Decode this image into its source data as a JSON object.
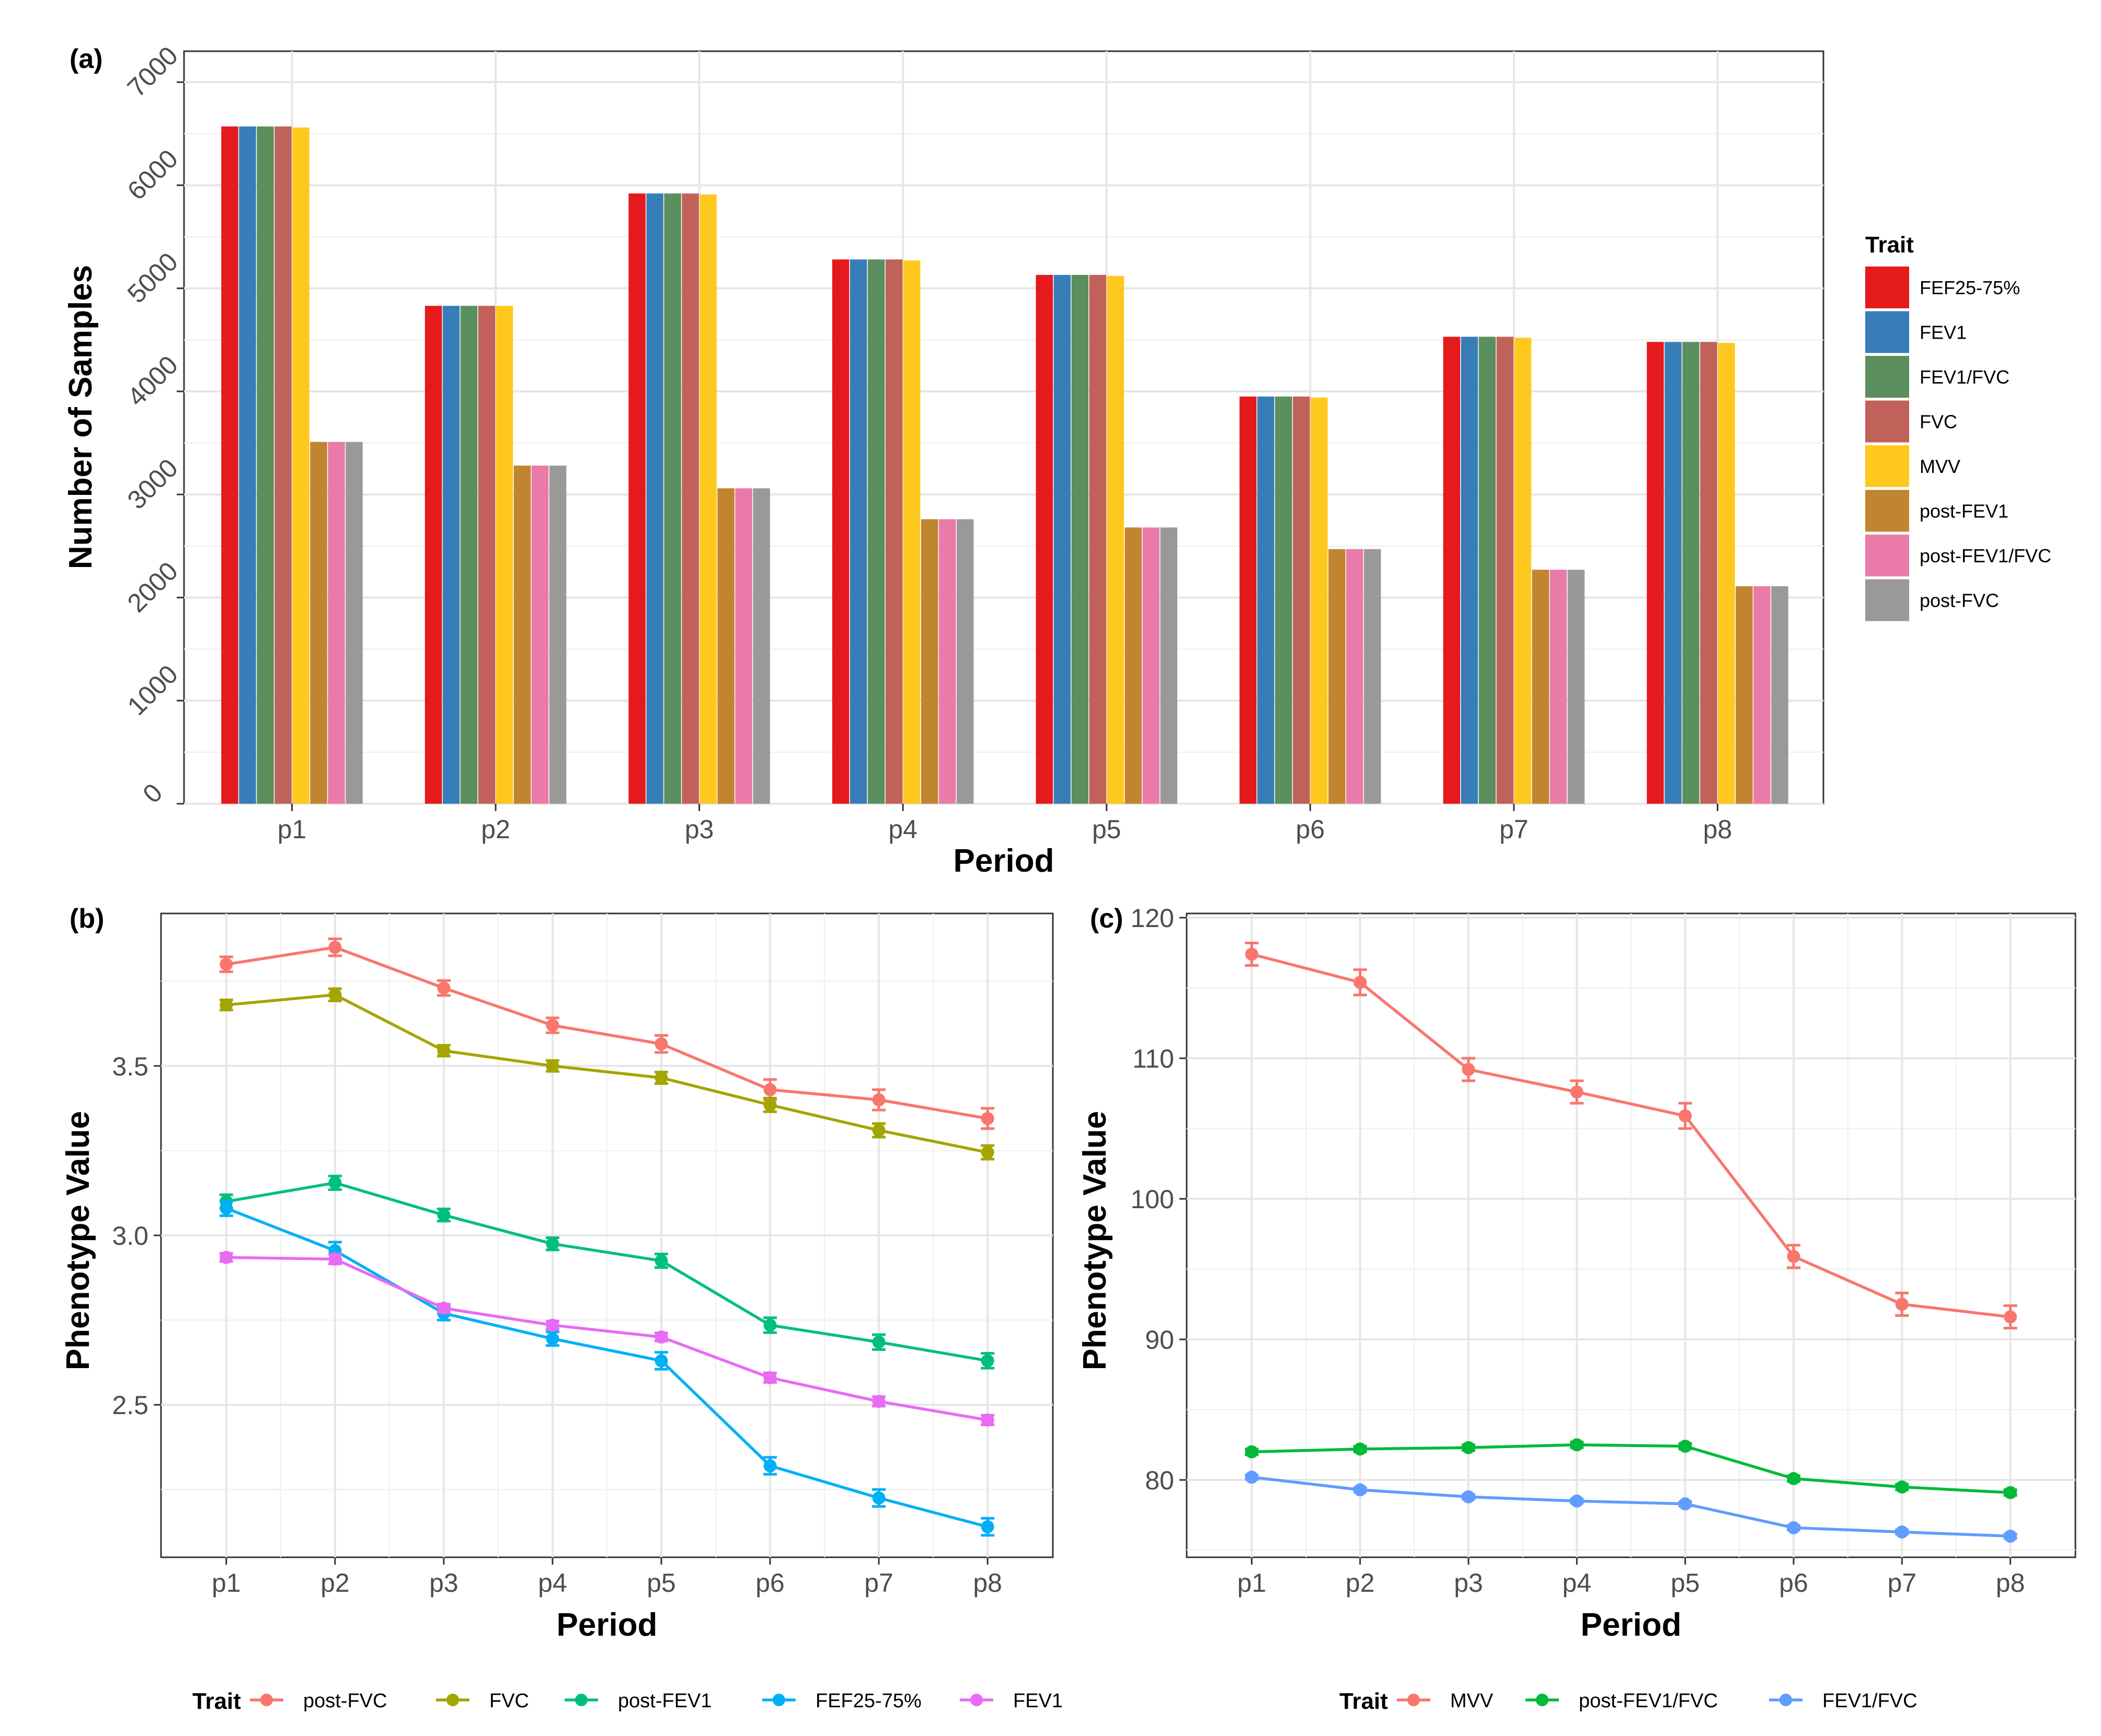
{
  "chart_data": [
    {
      "panel": "(a)",
      "type": "bar",
      "xlabel": "Period",
      "ylabel": "Number of Samples",
      "ylim": [
        0,
        7300
      ],
      "yticks": [
        0,
        1000,
        2000,
        3000,
        4000,
        5000,
        6000,
        7000
      ],
      "categories": [
        "p1",
        "p2",
        "p3",
        "p4",
        "p5",
        "p6",
        "p7",
        "p8"
      ],
      "legend_title": "Trait",
      "legend_position": "right",
      "series": [
        {
          "name": "FEF25-75%",
          "color": "#e41a1c",
          "values": [
            6570,
            4830,
            5920,
            5280,
            5130,
            3950,
            4530,
            4480
          ]
        },
        {
          "name": "FEV1",
          "color": "#377eb8",
          "values": [
            6570,
            4830,
            5920,
            5280,
            5130,
            3950,
            4530,
            4480
          ]
        },
        {
          "name": "FEV1/FVC",
          "color": "#5b8f5e",
          "values": [
            6570,
            4830,
            5920,
            5280,
            5130,
            3950,
            4530,
            4480
          ]
        },
        {
          "name": "FVC",
          "color": "#c0625a",
          "values": [
            6570,
            4830,
            5920,
            5280,
            5130,
            3950,
            4530,
            4480
          ]
        },
        {
          "name": "MVV",
          "color": "#ffc81e",
          "values": [
            6560,
            4830,
            5910,
            5270,
            5120,
            3940,
            4520,
            4470
          ]
        },
        {
          "name": "post-FEV1",
          "color": "#c18530",
          "values": [
            3510,
            3280,
            3060,
            2760,
            2680,
            2470,
            2270,
            2110
          ]
        },
        {
          "name": "post-FEV1/FVC",
          "color": "#ea7ba9",
          "values": [
            3510,
            3280,
            3060,
            2760,
            2680,
            2470,
            2270,
            2110
          ]
        },
        {
          "name": "post-FVC",
          "color": "#999999",
          "values": [
            3510,
            3280,
            3060,
            2760,
            2680,
            2470,
            2270,
            2110
          ]
        }
      ]
    },
    {
      "panel": "(b)",
      "type": "line",
      "xlabel": "Period",
      "ylabel": "Phenotype Value",
      "ylim": [
        2.05,
        3.95
      ],
      "yticks": [
        2.5,
        3.0,
        3.5
      ],
      "ytick_labels": [
        "2.5",
        "3.0",
        "3.5"
      ],
      "minor_y": [
        2.25,
        2.75,
        3.25,
        3.75
      ],
      "categories": [
        "p1",
        "p2",
        "p3",
        "p4",
        "p5",
        "p6",
        "p7",
        "p8"
      ],
      "legend_title": "Trait",
      "legend_position": "bottom",
      "series": [
        {
          "name": "post-FVC",
          "color": "#f8766d",
          "values": [
            3.8,
            3.85,
            3.73,
            3.62,
            3.565,
            3.43,
            3.4,
            3.345
          ],
          "err": [
            0.022,
            0.025,
            0.022,
            0.022,
            0.025,
            0.03,
            0.03,
            0.03
          ]
        },
        {
          "name": "FVC",
          "color": "#a3a500",
          "values": [
            3.68,
            3.71,
            3.545,
            3.5,
            3.465,
            3.385,
            3.31,
            3.245
          ],
          "err": [
            0.015,
            0.018,
            0.016,
            0.016,
            0.017,
            0.02,
            0.02,
            0.02
          ]
        },
        {
          "name": "post-FEV1",
          "color": "#00bf7d",
          "values": [
            3.1,
            3.155,
            3.06,
            2.975,
            2.925,
            2.735,
            2.685,
            2.63
          ],
          "err": [
            0.02,
            0.02,
            0.018,
            0.018,
            0.02,
            0.022,
            0.022,
            0.022
          ]
        },
        {
          "name": "FEF25-75%",
          "color": "#00b0f6",
          "values": [
            3.08,
            2.955,
            2.77,
            2.695,
            2.63,
            2.32,
            2.225,
            2.14
          ],
          "err": [
            0.022,
            0.025,
            0.02,
            0.02,
            0.025,
            0.025,
            0.025,
            0.025
          ]
        },
        {
          "name": "FEV1",
          "color": "#e76bf3",
          "values": [
            2.935,
            2.93,
            2.785,
            2.735,
            2.7,
            2.58,
            2.51,
            2.455
          ],
          "err": [
            0.012,
            0.014,
            0.012,
            0.012,
            0.012,
            0.014,
            0.014,
            0.014
          ]
        }
      ]
    },
    {
      "panel": "(c)",
      "type": "line",
      "xlabel": "Period",
      "ylabel": "Phenotype Value",
      "ylim": [
        74.5,
        120.3
      ],
      "yticks": [
        80,
        90,
        100,
        110,
        120
      ],
      "ytick_labels": [
        "80",
        "90",
        "100",
        "110",
        "120"
      ],
      "minor_y": [
        75,
        85,
        95,
        105,
        115
      ],
      "categories": [
        "p1",
        "p2",
        "p3",
        "p4",
        "p5",
        "p6",
        "p7",
        "p8"
      ],
      "legend_title": "Trait",
      "legend_position": "bottom",
      "series": [
        {
          "name": "MVV",
          "color": "#f8766d",
          "values": [
            117.4,
            115.4,
            109.2,
            107.6,
            105.9,
            95.9,
            92.5,
            91.6
          ],
          "err": [
            0.8,
            0.9,
            0.8,
            0.8,
            0.9,
            0.8,
            0.8,
            0.8
          ]
        },
        {
          "name": "post-FEV1/FVC",
          "color": "#00ba38",
          "values": [
            82.0,
            82.2,
            82.3,
            82.5,
            82.4,
            80.1,
            79.5,
            79.1
          ],
          "err": [
            0.2,
            0.2,
            0.2,
            0.2,
            0.2,
            0.2,
            0.2,
            0.2
          ]
        },
        {
          "name": "FEV1/FVC",
          "color": "#619cff",
          "values": [
            80.2,
            79.3,
            78.8,
            78.5,
            78.3,
            76.6,
            76.3,
            76.0
          ],
          "err": [
            0.15,
            0.15,
            0.15,
            0.15,
            0.15,
            0.15,
            0.15,
            0.15
          ]
        }
      ]
    }
  ]
}
